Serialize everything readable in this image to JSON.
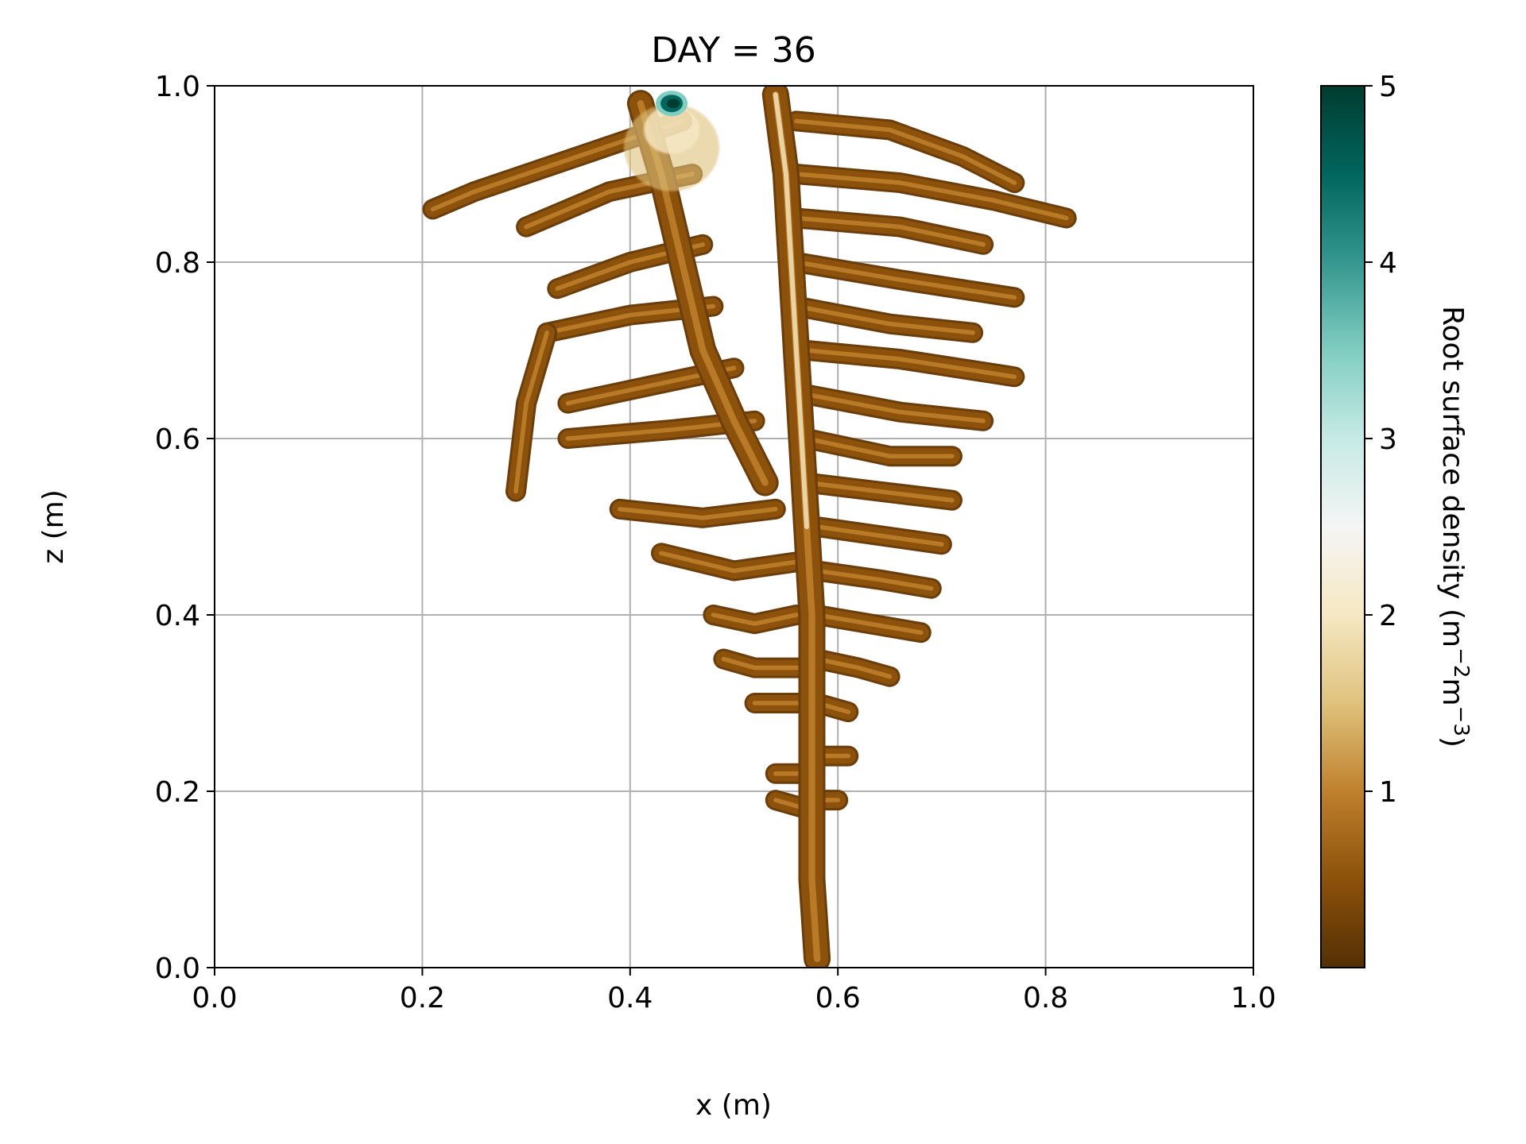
{
  "chart_data": {
    "type": "heatmap",
    "title": "DAY = 36",
    "xlabel": "x (m)",
    "ylabel": "z (m)",
    "xlim": [
      0.0,
      1.0
    ],
    "ylim": [
      0.0,
      1.0
    ],
    "xticks": [
      "0.0",
      "0.2",
      "0.4",
      "0.6",
      "0.8",
      "1.0"
    ],
    "yticks": [
      "0.0",
      "0.2",
      "0.4",
      "0.6",
      "0.8",
      "1.0"
    ],
    "grid": true,
    "colormap": "BrBG",
    "colorbar": {
      "label_main": "Root surface density (m",
      "label_exp1": "−2",
      "label_mid": "m",
      "label_exp2": "−3",
      "label_end": ")",
      "range": [
        0,
        5
      ],
      "ticks": [
        "1",
        "2",
        "3",
        "4",
        "5"
      ],
      "colors": [
        "#543005",
        "#8c510a",
        "#bf812d",
        "#dfc27d",
        "#f6e8c3",
        "#f5f5f5",
        "#c7eae5",
        "#80cdc1",
        "#35978f",
        "#01665e",
        "#003c30"
      ]
    },
    "root_system": {
      "taproot": [
        [
          0.54,
          0.99
        ],
        [
          0.55,
          0.9
        ],
        [
          0.555,
          0.8
        ],
        [
          0.56,
          0.7
        ],
        [
          0.565,
          0.6
        ],
        [
          0.57,
          0.5
        ],
        [
          0.575,
          0.4
        ],
        [
          0.575,
          0.3
        ],
        [
          0.575,
          0.2
        ],
        [
          0.575,
          0.1
        ],
        [
          0.58,
          0.01
        ]
      ],
      "secondary_stem": [
        [
          0.41,
          0.98
        ],
        [
          0.43,
          0.9
        ],
        [
          0.45,
          0.8
        ],
        [
          0.47,
          0.7
        ],
        [
          0.5,
          0.62
        ],
        [
          0.53,
          0.55
        ]
      ],
      "laterals_left": [
        [
          [
            0.45,
            0.96
          ],
          [
            0.35,
            0.92
          ],
          [
            0.25,
            0.88
          ],
          [
            0.21,
            0.86
          ]
        ],
        [
          [
            0.46,
            0.9
          ],
          [
            0.38,
            0.88
          ],
          [
            0.3,
            0.84
          ]
        ],
        [
          [
            0.47,
            0.82
          ],
          [
            0.4,
            0.8
          ],
          [
            0.33,
            0.77
          ]
        ],
        [
          [
            0.48,
            0.75
          ],
          [
            0.4,
            0.74
          ],
          [
            0.32,
            0.72
          ]
        ],
        [
          [
            0.5,
            0.68
          ],
          [
            0.42,
            0.66
          ],
          [
            0.34,
            0.64
          ]
        ],
        [
          [
            0.52,
            0.62
          ],
          [
            0.44,
            0.61
          ],
          [
            0.34,
            0.6
          ]
        ],
        [
          [
            0.54,
            0.52
          ],
          [
            0.47,
            0.51
          ],
          [
            0.39,
            0.52
          ]
        ],
        [
          [
            0.56,
            0.46
          ],
          [
            0.5,
            0.45
          ],
          [
            0.43,
            0.47
          ]
        ],
        [
          [
            0.56,
            0.4
          ],
          [
            0.52,
            0.39
          ],
          [
            0.48,
            0.4
          ]
        ],
        [
          [
            0.57,
            0.34
          ],
          [
            0.52,
            0.34
          ],
          [
            0.49,
            0.35
          ]
        ],
        [
          [
            0.57,
            0.3
          ],
          [
            0.52,
            0.3
          ]
        ],
        [
          [
            0.57,
            0.22
          ],
          [
            0.54,
            0.22
          ]
        ],
        [
          [
            0.57,
            0.18
          ],
          [
            0.54,
            0.19
          ]
        ],
        [
          [
            0.32,
            0.72
          ],
          [
            0.3,
            0.64
          ],
          [
            0.29,
            0.54
          ]
        ]
      ],
      "laterals_right": [
        [
          [
            0.56,
            0.96
          ],
          [
            0.65,
            0.95
          ],
          [
            0.72,
            0.92
          ],
          [
            0.77,
            0.89
          ]
        ],
        [
          [
            0.56,
            0.9
          ],
          [
            0.66,
            0.89
          ],
          [
            0.75,
            0.87
          ],
          [
            0.82,
            0.85
          ]
        ],
        [
          [
            0.56,
            0.85
          ],
          [
            0.66,
            0.84
          ],
          [
            0.74,
            0.82
          ]
        ],
        [
          [
            0.56,
            0.8
          ],
          [
            0.66,
            0.78
          ],
          [
            0.77,
            0.76
          ]
        ],
        [
          [
            0.56,
            0.75
          ],
          [
            0.65,
            0.73
          ],
          [
            0.73,
            0.72
          ]
        ],
        [
          [
            0.57,
            0.7
          ],
          [
            0.66,
            0.69
          ],
          [
            0.77,
            0.67
          ]
        ],
        [
          [
            0.57,
            0.65
          ],
          [
            0.66,
            0.63
          ],
          [
            0.74,
            0.62
          ]
        ],
        [
          [
            0.57,
            0.6
          ],
          [
            0.65,
            0.58
          ],
          [
            0.71,
            0.58
          ]
        ],
        [
          [
            0.57,
            0.55
          ],
          [
            0.64,
            0.54
          ],
          [
            0.71,
            0.53
          ]
        ],
        [
          [
            0.58,
            0.5
          ],
          [
            0.64,
            0.49
          ],
          [
            0.7,
            0.48
          ]
        ],
        [
          [
            0.58,
            0.45
          ],
          [
            0.64,
            0.44
          ],
          [
            0.69,
            0.43
          ]
        ],
        [
          [
            0.58,
            0.4
          ],
          [
            0.63,
            0.39
          ],
          [
            0.68,
            0.38
          ]
        ],
        [
          [
            0.58,
            0.35
          ],
          [
            0.62,
            0.34
          ],
          [
            0.65,
            0.33
          ]
        ],
        [
          [
            0.58,
            0.3
          ],
          [
            0.61,
            0.29
          ]
        ],
        [
          [
            0.58,
            0.24
          ],
          [
            0.61,
            0.24
          ]
        ],
        [
          [
            0.58,
            0.19
          ],
          [
            0.6,
            0.19
          ]
        ]
      ],
      "hotspot": {
        "x": 0.44,
        "z": 0.98,
        "value": 4.8
      }
    }
  }
}
